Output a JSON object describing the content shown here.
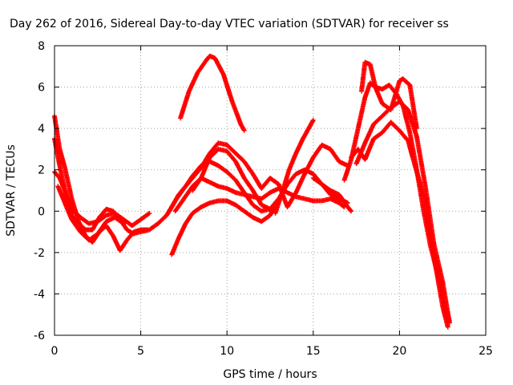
{
  "chart_data": {
    "type": "scatter",
    "title": "Day 262 of 2016, Sidereal Day-to-day VTEC variation (SDTVAR) for receiver ss",
    "xlabel": "GPS time / hours",
    "ylabel": "SDTVAR / TECUs",
    "xlim": [
      0,
      25
    ],
    "ylim": [
      -6,
      8
    ],
    "xticks": [
      "0",
      "5",
      "10",
      "15",
      "20",
      "25"
    ],
    "yticks": [
      "-6",
      "-4",
      "-2",
      "0",
      "2",
      "4",
      "6",
      "8"
    ],
    "grid": true,
    "marker": "plus",
    "color": "#ff0000",
    "series": [
      {
        "x": [
          0.0,
          0.3,
          0.6,
          1.0,
          1.4,
          1.8,
          2.2,
          2.6,
          3.0,
          3.4,
          3.8,
          4.2,
          4.6,
          5.0,
          5.4
        ],
        "y": [
          4.6,
          3.0,
          2.1,
          0.6,
          -0.5,
          -1.2,
          -1.5,
          -1.0,
          -0.7,
          -1.2,
          -1.9,
          -1.4,
          -1.0,
          -0.9,
          -0.9
        ]
      },
      {
        "x": [
          0.0,
          0.3,
          0.6,
          1.0,
          1.5,
          2.0,
          2.5,
          3.0,
          3.5,
          4.0,
          4.5,
          5.0,
          5.5
        ],
        "y": [
          1.9,
          1.6,
          1.0,
          0.1,
          -0.3,
          -0.6,
          -0.5,
          -0.2,
          -0.1,
          -0.4,
          -0.7,
          -0.4,
          -0.1
        ]
      },
      {
        "x": [
          0.0,
          0.3,
          0.7,
          1.0,
          1.4,
          1.8,
          2.2,
          2.6,
          3.0,
          3.4,
          3.8,
          4.2,
          4.6
        ],
        "y": [
          3.5,
          2.2,
          0.6,
          -0.2,
          -0.6,
          -0.9,
          -0.9,
          -0.3,
          0.1,
          0.0,
          -0.4,
          -0.9,
          -1.1
        ]
      },
      {
        "x": [
          0.2,
          0.5,
          1.0,
          1.5,
          2.0,
          2.5,
          3.0,
          3.5,
          4.0
        ],
        "y": [
          1.2,
          0.6,
          -0.4,
          -1.0,
          -1.4,
          -1.1,
          -0.5,
          -0.3,
          -0.6
        ]
      },
      {
        "x": [
          4.5,
          5.0,
          5.5,
          6.0,
          6.5,
          6.8,
          7.2,
          7.6,
          8.0,
          8.5,
          9.0,
          9.5,
          10.0,
          10.5,
          11.0,
          11.5,
          12.0,
          12.5,
          13.0
        ],
        "y": [
          -1.1,
          -1.0,
          -0.9,
          -0.6,
          -0.2,
          0.2,
          0.8,
          1.2,
          1.7,
          2.2,
          2.4,
          2.2,
          1.9,
          1.5,
          0.9,
          0.3,
          0.0,
          0.1,
          0.6
        ]
      },
      {
        "x": [
          6.8,
          7.2,
          7.6,
          8.0,
          8.5,
          9.0,
          9.5,
          10.0,
          10.5,
          11.0,
          11.5,
          12.0,
          12.5,
          12.8
        ],
        "y": [
          -2.1,
          -1.3,
          -0.6,
          -0.1,
          0.2,
          0.4,
          0.5,
          0.5,
          0.3,
          0.0,
          -0.3,
          -0.5,
          -0.2,
          0.3
        ]
      },
      {
        "x": [
          7.0,
          7.5,
          8.0,
          8.5,
          9.0,
          9.5,
          10.0,
          10.5,
          11.0,
          11.5,
          12.0,
          12.5,
          13.0,
          13.5,
          14.0,
          14.5,
          15.0,
          15.5,
          16.0,
          16.5,
          16.8
        ],
        "y": [
          0.0,
          0.6,
          1.2,
          1.6,
          1.4,
          1.2,
          1.1,
          0.9,
          0.8,
          0.7,
          0.6,
          0.9,
          1.1,
          0.9,
          0.7,
          0.6,
          0.5,
          0.5,
          0.6,
          0.4,
          0.2
        ]
      },
      {
        "x": [
          7.3,
          7.8,
          8.3,
          8.8,
          9.0,
          9.3,
          9.8,
          10.3,
          10.8,
          11.0
        ],
        "y": [
          4.5,
          5.8,
          6.7,
          7.3,
          7.5,
          7.4,
          6.6,
          5.3,
          4.2,
          3.9
        ]
      },
      {
        "x": [
          6.5,
          7.0,
          7.5,
          8.0,
          8.5,
          9.0,
          9.5,
          10.0,
          10.5,
          11.0,
          11.5,
          12.0,
          12.5,
          13.0,
          13.5,
          14.0,
          14.5,
          15.0,
          15.5,
          16.0,
          16.5,
          17.0
        ],
        "y": [
          -0.2,
          0.5,
          1.1,
          1.6,
          2.1,
          2.8,
          3.3,
          3.2,
          2.8,
          2.4,
          1.8,
          1.1,
          1.6,
          1.3,
          0.2,
          0.9,
          1.8,
          2.6,
          3.2,
          3.0,
          2.4,
          2.2
        ]
      },
      {
        "x": [
          8.0,
          8.5,
          9.0,
          9.5,
          10.0,
          10.5,
          11.0,
          11.5,
          12.0,
          12.5,
          13.0,
          13.5,
          14.0,
          14.5,
          15.0,
          15.5,
          16.0,
          16.5,
          17.0
        ],
        "y": [
          1.0,
          1.6,
          2.6,
          3.0,
          2.9,
          2.4,
          1.6,
          1.0,
          0.3,
          0.1,
          0.6,
          1.3,
          1.8,
          2.0,
          1.8,
          1.3,
          0.8,
          0.6,
          0.4
        ]
      },
      {
        "x": [
          12.8,
          13.2,
          13.6,
          14.0,
          14.4,
          14.8,
          15.0
        ],
        "y": [
          -0.1,
          0.9,
          2.0,
          2.8,
          3.5,
          4.1,
          4.4
        ]
      },
      {
        "x": [
          15.0,
          15.5,
          16.0,
          16.5,
          17.0,
          17.2
        ],
        "y": [
          1.6,
          1.3,
          1.0,
          0.8,
          0.2,
          0.0
        ]
      },
      {
        "x": [
          16.8,
          17.2,
          17.6,
          18.0,
          18.3,
          18.6,
          19.0,
          19.4,
          19.8,
          20.2,
          20.6,
          21.0,
          21.4,
          21.8,
          22.2,
          22.6,
          22.9
        ],
        "y": [
          1.5,
          2.5,
          4.0,
          5.5,
          6.2,
          6.0,
          5.9,
          6.1,
          5.7,
          5.1,
          3.8,
          2.0,
          0.0,
          -1.7,
          -3.0,
          -4.5,
          -5.3
        ]
      },
      {
        "x": [
          17.8,
          18.0,
          18.3,
          18.6,
          19.0,
          19.5,
          20.0,
          20.2,
          20.6,
          21.0
        ],
        "y": [
          5.8,
          7.2,
          7.1,
          6.0,
          5.2,
          4.9,
          6.3,
          6.4,
          6.1,
          4.0
        ]
      },
      {
        "x": [
          17.5,
          18.0,
          18.5,
          19.0,
          19.5,
          20.0,
          20.5,
          21.0,
          21.5,
          22.0,
          22.5,
          22.9
        ],
        "y": [
          2.3,
          3.3,
          4.2,
          4.6,
          5.0,
          5.3,
          4.9,
          3.6,
          1.2,
          -1.6,
          -3.4,
          -5.4
        ]
      },
      {
        "x": [
          17.2,
          17.6,
          18.0,
          18.5,
          19.0,
          19.5,
          20.0,
          20.5,
          21.0,
          21.5,
          22.0,
          22.5,
          22.8
        ],
        "y": [
          2.6,
          3.0,
          2.5,
          3.5,
          3.8,
          4.3,
          3.9,
          3.4,
          1.9,
          0.5,
          -2.2,
          -4.6,
          -5.6
        ]
      }
    ]
  }
}
